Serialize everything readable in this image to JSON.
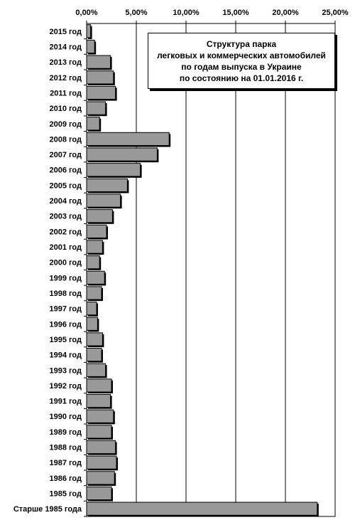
{
  "chart_data": {
    "type": "bar",
    "orientation": "horizontal",
    "title_lines": [
      "Структура парка",
      "легковых и коммерческих автомобилей",
      "по годам выпуска в Украине",
      "по состоянию на 01.01.2016 г."
    ],
    "xlabel": "",
    "ylabel": "",
    "xlim": [
      0,
      25
    ],
    "x_ticks": [
      "0,00%",
      "5,00%",
      "10,00%",
      "15,00%",
      "20,00%",
      "25,00%"
    ],
    "x_tick_values": [
      0,
      5,
      10,
      15,
      20,
      25
    ],
    "grid": "vertical",
    "legend": "none",
    "bar_color": "#999999",
    "categories": [
      "2015 год",
      "2014 год",
      "2013 год",
      "2012 год",
      "2011 год",
      "2010 год",
      "2009 год",
      "2008 год",
      "2007 год",
      "2006 год",
      "2005 год",
      "2004 год",
      "2003 год",
      "2002 год",
      "2001 год",
      "2000 год",
      "1999 год",
      "1998 год",
      "1997 год",
      "1996 год",
      "1995 год",
      "1994 год",
      "1993 год",
      "1992 год",
      "1991 год",
      "1990 год",
      "1989 год",
      "1988 год",
      "1987 год",
      "1986 год",
      "1985 год",
      "Старше 1985 года"
    ],
    "values": [
      0.4,
      0.8,
      2.4,
      2.7,
      2.9,
      1.9,
      1.3,
      8.3,
      7.1,
      5.4,
      4.1,
      3.4,
      2.6,
      2.0,
      1.6,
      1.3,
      1.8,
      1.5,
      1.0,
      1.1,
      1.6,
      1.5,
      1.9,
      2.5,
      2.4,
      2.7,
      2.5,
      2.9,
      3.0,
      2.8,
      2.5,
      23.2
    ]
  }
}
